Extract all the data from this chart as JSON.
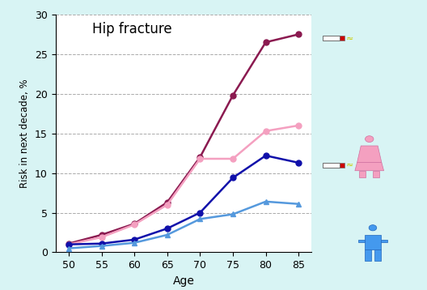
{
  "title": "Hip fracture",
  "xlabel": "Age",
  "ylabel": "Risk in next decade, %",
  "ages": [
    50,
    55,
    60,
    65,
    70,
    75,
    80,
    85
  ],
  "series": {
    "female_smoker": {
      "values": [
        1.1,
        2.2,
        3.6,
        6.3,
        12.0,
        19.8,
        26.5,
        27.5
      ],
      "color": "#8B1A50",
      "marker": "o",
      "linewidth": 1.8,
      "markersize": 5
    },
    "female_nonsmoker": {
      "values": [
        1.0,
        1.9,
        3.5,
        6.0,
        11.8,
        11.8,
        15.3,
        16.0
      ],
      "color": "#F4A0C0",
      "marker": "o",
      "linewidth": 1.8,
      "markersize": 5
    },
    "male_smoker": {
      "values": [
        1.0,
        1.1,
        1.6,
        3.0,
        5.0,
        9.4,
        12.2,
        11.3
      ],
      "color": "#1010AA",
      "marker": "o",
      "linewidth": 1.8,
      "markersize": 5
    },
    "male_nonsmoker": {
      "values": [
        0.5,
        0.8,
        1.2,
        2.2,
        4.2,
        4.8,
        6.4,
        6.1
      ],
      "color": "#5599DD",
      "marker": "^",
      "linewidth": 1.8,
      "markersize": 5
    }
  },
  "ylim": [
    0,
    30
  ],
  "yticks": [
    0,
    5,
    10,
    15,
    20,
    25,
    30
  ],
  "background_color": "#ffffff",
  "outer_background": "#D8F4F4",
  "grid_color": "#aaaaaa",
  "title_fontsize": 12
}
